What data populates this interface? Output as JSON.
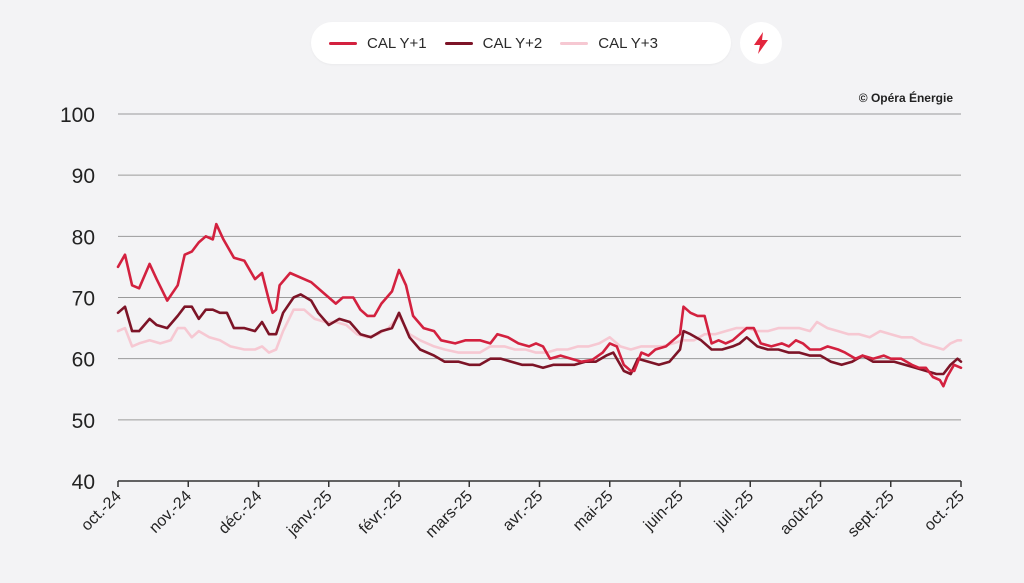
{
  "copyright": "© Opéra Énergie",
  "legend": [
    {
      "label": "CAL Y+1",
      "color": "#d3213f"
    },
    {
      "label": "CAL Y+2",
      "color": "#7d1427"
    },
    {
      "label": "CAL Y+3",
      "color": "#f6c8d2"
    }
  ],
  "badge_icon": "lightning-bolt-icon",
  "colors": {
    "accent": "#e3263d",
    "grid": "#a0a0a0",
    "background": "#f3f3f5"
  },
  "chart_data": {
    "type": "line",
    "title": "",
    "xlabel": "",
    "ylabel": "",
    "ylim": [
      40,
      100
    ],
    "yticks": [
      40,
      50,
      60,
      70,
      80,
      90,
      100
    ],
    "grid": "horizontal",
    "legend_position": "top-center",
    "x_tick_labels": [
      "oct.-24",
      "nov.-24",
      "déc.-24",
      "janv.-25",
      "févr.-25",
      "mars-25",
      "avr.-25",
      "mai-25",
      "juin-25",
      "juil.-25",
      "août-25",
      "sept.-25",
      "oct.-25"
    ],
    "x_range": [
      0,
      12
    ],
    "series": [
      {
        "name": "CAL Y+1",
        "color": "#d3213f",
        "points": [
          [
            0.0,
            75
          ],
          [
            0.1,
            77
          ],
          [
            0.2,
            72
          ],
          [
            0.3,
            71.5
          ],
          [
            0.45,
            75.5
          ],
          [
            0.55,
            73
          ],
          [
            0.7,
            69.5
          ],
          [
            0.85,
            72
          ],
          [
            0.95,
            77
          ],
          [
            1.05,
            77.5
          ],
          [
            1.15,
            79
          ],
          [
            1.25,
            80
          ],
          [
            1.35,
            79.5
          ],
          [
            1.4,
            82
          ],
          [
            1.5,
            79.5
          ],
          [
            1.65,
            76.5
          ],
          [
            1.8,
            76
          ],
          [
            1.95,
            73
          ],
          [
            2.05,
            74
          ],
          [
            2.15,
            69.5
          ],
          [
            2.2,
            67.5
          ],
          [
            2.25,
            68
          ],
          [
            2.3,
            72
          ],
          [
            2.45,
            74
          ],
          [
            2.75,
            72.5
          ],
          [
            2.9,
            71
          ],
          [
            3.0,
            70
          ],
          [
            3.1,
            69
          ],
          [
            3.2,
            70
          ],
          [
            3.35,
            70
          ],
          [
            3.45,
            68
          ],
          [
            3.55,
            67
          ],
          [
            3.65,
            67
          ],
          [
            3.75,
            69
          ],
          [
            3.9,
            71
          ],
          [
            4.0,
            74.5
          ],
          [
            4.1,
            72
          ],
          [
            4.2,
            67
          ],
          [
            4.35,
            65
          ],
          [
            4.5,
            64.5
          ],
          [
            4.6,
            63
          ],
          [
            4.8,
            62.5
          ],
          [
            4.95,
            63
          ],
          [
            5.15,
            63
          ],
          [
            5.3,
            62.5
          ],
          [
            5.4,
            64
          ],
          [
            5.55,
            63.5
          ],
          [
            5.7,
            62.5
          ],
          [
            5.85,
            62
          ],
          [
            5.95,
            62.5
          ],
          [
            6.05,
            62
          ],
          [
            6.15,
            60
          ],
          [
            6.3,
            60.5
          ],
          [
            6.45,
            60
          ],
          [
            6.6,
            59.5
          ],
          [
            6.75,
            59.8
          ],
          [
            6.9,
            61
          ],
          [
            7.0,
            62.5
          ],
          [
            7.1,
            62
          ],
          [
            7.2,
            59
          ],
          [
            7.3,
            58
          ],
          [
            7.35,
            58
          ],
          [
            7.45,
            61
          ],
          [
            7.55,
            60.5
          ],
          [
            7.65,
            61.5
          ],
          [
            7.8,
            62
          ],
          [
            7.9,
            63
          ],
          [
            8.0,
            64
          ],
          [
            8.05,
            68.5
          ],
          [
            8.15,
            67.5
          ],
          [
            8.25,
            67
          ],
          [
            8.35,
            67
          ],
          [
            8.45,
            62.5
          ],
          [
            8.55,
            63
          ],
          [
            8.65,
            62.5
          ],
          [
            8.75,
            63
          ],
          [
            8.85,
            64
          ],
          [
            8.95,
            65
          ],
          [
            9.05,
            65
          ],
          [
            9.15,
            62.5
          ],
          [
            9.3,
            62
          ],
          [
            9.45,
            62.5
          ],
          [
            9.55,
            62
          ],
          [
            9.65,
            63
          ],
          [
            9.75,
            62.5
          ],
          [
            9.85,
            61.5
          ],
          [
            10.0,
            61.5
          ],
          [
            10.1,
            62
          ],
          [
            10.25,
            61.5
          ],
          [
            10.35,
            61
          ],
          [
            10.5,
            60
          ],
          [
            10.6,
            60.5
          ],
          [
            10.75,
            60
          ],
          [
            10.9,
            60.5
          ],
          [
            11.0,
            60
          ],
          [
            11.15,
            60
          ],
          [
            11.3,
            59
          ],
          [
            11.4,
            58.5
          ],
          [
            11.5,
            58.5
          ],
          [
            11.6,
            57
          ],
          [
            11.7,
            56.5
          ],
          [
            11.75,
            55.5
          ],
          [
            11.8,
            57
          ],
          [
            11.9,
            59
          ],
          [
            12.0,
            58.5
          ]
        ]
      },
      {
        "name": "CAL Y+2",
        "color": "#7d1427",
        "points": [
          [
            0.0,
            67.5
          ],
          [
            0.1,
            68.5
          ],
          [
            0.2,
            64.5
          ],
          [
            0.3,
            64.5
          ],
          [
            0.45,
            66.5
          ],
          [
            0.55,
            65.5
          ],
          [
            0.7,
            65
          ],
          [
            0.85,
            67
          ],
          [
            0.95,
            68.5
          ],
          [
            1.05,
            68.5
          ],
          [
            1.15,
            66.5
          ],
          [
            1.25,
            68
          ],
          [
            1.35,
            68
          ],
          [
            1.45,
            67.5
          ],
          [
            1.55,
            67.5
          ],
          [
            1.65,
            65
          ],
          [
            1.8,
            65
          ],
          [
            1.95,
            64.5
          ],
          [
            2.05,
            66
          ],
          [
            2.15,
            64
          ],
          [
            2.25,
            64
          ],
          [
            2.35,
            67.5
          ],
          [
            2.5,
            70
          ],
          [
            2.6,
            70.5
          ],
          [
            2.75,
            69.5
          ],
          [
            2.85,
            67.5
          ],
          [
            3.0,
            65.5
          ],
          [
            3.15,
            66.5
          ],
          [
            3.3,
            66
          ],
          [
            3.45,
            64
          ],
          [
            3.6,
            63.5
          ],
          [
            3.75,
            64.5
          ],
          [
            3.9,
            65
          ],
          [
            4.0,
            67.5
          ],
          [
            4.15,
            63.5
          ],
          [
            4.3,
            61.5
          ],
          [
            4.5,
            60.5
          ],
          [
            4.65,
            59.5
          ],
          [
            4.85,
            59.5
          ],
          [
            5.0,
            59
          ],
          [
            5.15,
            59
          ],
          [
            5.3,
            60
          ],
          [
            5.45,
            60
          ],
          [
            5.6,
            59.5
          ],
          [
            5.75,
            59
          ],
          [
            5.9,
            59
          ],
          [
            6.05,
            58.5
          ],
          [
            6.2,
            59
          ],
          [
            6.35,
            59
          ],
          [
            6.5,
            59
          ],
          [
            6.65,
            59.5
          ],
          [
            6.8,
            59.5
          ],
          [
            6.95,
            60.5
          ],
          [
            7.05,
            61
          ],
          [
            7.2,
            58
          ],
          [
            7.3,
            57.5
          ],
          [
            7.4,
            60
          ],
          [
            7.55,
            59.5
          ],
          [
            7.7,
            59
          ],
          [
            7.85,
            59.5
          ],
          [
            8.0,
            61.5
          ],
          [
            8.05,
            64.5
          ],
          [
            8.15,
            64
          ],
          [
            8.3,
            63
          ],
          [
            8.45,
            61.5
          ],
          [
            8.6,
            61.5
          ],
          [
            8.75,
            62
          ],
          [
            8.85,
            62.5
          ],
          [
            8.95,
            63.5
          ],
          [
            9.1,
            62
          ],
          [
            9.25,
            61.5
          ],
          [
            9.4,
            61.5
          ],
          [
            9.55,
            61
          ],
          [
            9.7,
            61
          ],
          [
            9.85,
            60.5
          ],
          [
            10.0,
            60.5
          ],
          [
            10.15,
            59.5
          ],
          [
            10.3,
            59
          ],
          [
            10.45,
            59.5
          ],
          [
            10.6,
            60.5
          ],
          [
            10.75,
            59.5
          ],
          [
            10.9,
            59.5
          ],
          [
            11.05,
            59.5
          ],
          [
            11.2,
            59
          ],
          [
            11.35,
            58.5
          ],
          [
            11.5,
            58
          ],
          [
            11.65,
            57.5
          ],
          [
            11.75,
            57.5
          ],
          [
            11.85,
            59
          ],
          [
            11.95,
            60
          ],
          [
            12.0,
            59.5
          ]
        ]
      },
      {
        "name": "CAL Y+3",
        "color": "#f6c8d2",
        "points": [
          [
            0.0,
            64.5
          ],
          [
            0.1,
            65
          ],
          [
            0.2,
            62
          ],
          [
            0.3,
            62.5
          ],
          [
            0.45,
            63
          ],
          [
            0.6,
            62.5
          ],
          [
            0.75,
            63
          ],
          [
            0.85,
            65
          ],
          [
            0.95,
            65
          ],
          [
            1.05,
            63.5
          ],
          [
            1.15,
            64.5
          ],
          [
            1.3,
            63.5
          ],
          [
            1.45,
            63
          ],
          [
            1.6,
            62
          ],
          [
            1.8,
            61.5
          ],
          [
            1.95,
            61.5
          ],
          [
            2.05,
            62
          ],
          [
            2.15,
            61
          ],
          [
            2.25,
            61.5
          ],
          [
            2.35,
            64.5
          ],
          [
            2.5,
            68
          ],
          [
            2.65,
            68
          ],
          [
            2.8,
            66.5
          ],
          [
            2.95,
            66
          ],
          [
            3.1,
            66
          ],
          [
            3.25,
            65.5
          ],
          [
            3.4,
            64
          ],
          [
            3.55,
            63.5
          ],
          [
            3.7,
            64
          ],
          [
            3.85,
            65
          ],
          [
            4.0,
            67
          ],
          [
            4.15,
            64
          ],
          [
            4.3,
            63
          ],
          [
            4.5,
            62
          ],
          [
            4.65,
            61.5
          ],
          [
            4.85,
            61
          ],
          [
            5.0,
            61
          ],
          [
            5.15,
            61
          ],
          [
            5.3,
            62
          ],
          [
            5.5,
            62
          ],
          [
            5.65,
            61.5
          ],
          [
            5.8,
            61.5
          ],
          [
            5.95,
            61
          ],
          [
            6.1,
            61
          ],
          [
            6.25,
            61.5
          ],
          [
            6.4,
            61.5
          ],
          [
            6.55,
            62
          ],
          [
            6.7,
            62
          ],
          [
            6.85,
            62.5
          ],
          [
            7.0,
            63.5
          ],
          [
            7.15,
            62
          ],
          [
            7.3,
            61.5
          ],
          [
            7.45,
            62
          ],
          [
            7.6,
            62
          ],
          [
            7.75,
            62
          ],
          [
            7.9,
            62.5
          ],
          [
            8.05,
            63
          ],
          [
            8.2,
            63
          ],
          [
            8.35,
            64
          ],
          [
            8.5,
            64
          ],
          [
            8.65,
            64.5
          ],
          [
            8.8,
            65
          ],
          [
            8.95,
            65
          ],
          [
            9.1,
            64.5
          ],
          [
            9.25,
            64.5
          ],
          [
            9.4,
            65
          ],
          [
            9.55,
            65
          ],
          [
            9.7,
            65
          ],
          [
            9.85,
            64.5
          ],
          [
            9.95,
            66
          ],
          [
            10.1,
            65
          ],
          [
            10.25,
            64.5
          ],
          [
            10.4,
            64
          ],
          [
            10.55,
            64
          ],
          [
            10.7,
            63.5
          ],
          [
            10.85,
            64.5
          ],
          [
            11.0,
            64
          ],
          [
            11.15,
            63.5
          ],
          [
            11.3,
            63.5
          ],
          [
            11.45,
            62.5
          ],
          [
            11.6,
            62
          ],
          [
            11.75,
            61.5
          ],
          [
            11.85,
            62.5
          ],
          [
            11.95,
            63
          ],
          [
            12.0,
            63
          ]
        ]
      }
    ]
  }
}
